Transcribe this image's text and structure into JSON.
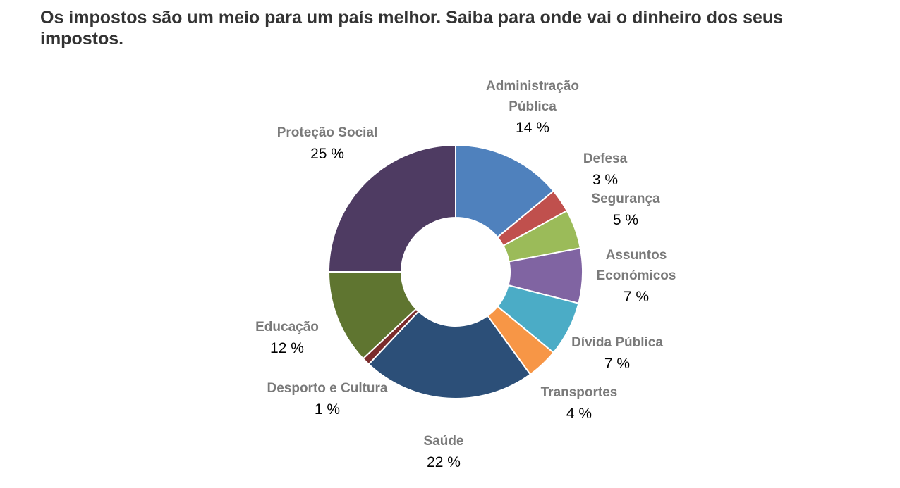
{
  "title": "Os impostos são um meio para um país melhor. Saiba para onde vai o dinheiro dos seus impostos.",
  "chart_data": {
    "type": "pie",
    "donut": true,
    "title": "Os impostos são um meio para um país melhor. Saiba para onde vai o dinheiro dos seus impostos.",
    "start": "top, clockwise",
    "categories": [
      "Administração Pública",
      "Defesa",
      "Segurança",
      "Assuntos Económicos",
      "Dívida Pública",
      "Transportes",
      "Saúde",
      "Desporto e Cultura",
      "Educação",
      "Proteção Social"
    ],
    "title_lines": [
      [
        "Administração",
        "Pública"
      ],
      [
        "Defesa"
      ],
      [
        "Segurança"
      ],
      [
        "Assuntos",
        "Económicos"
      ],
      [
        "Dívida Pública"
      ],
      [
        "Transportes"
      ],
      [
        "Saúde"
      ],
      [
        "Desporto e Cultura"
      ],
      [
        "Educação"
      ],
      [
        "Proteção Social"
      ]
    ],
    "values": [
      14,
      3,
      5,
      7,
      7,
      4,
      22,
      1,
      12,
      25
    ],
    "value_labels": [
      "14 %",
      "3 %",
      "5 %",
      "7 %",
      "7 %",
      "4 %",
      "22 %",
      "1 %",
      "12 %",
      "25 %"
    ],
    "colors": [
      "#4F81BD",
      "#C0504D",
      "#9BBB59",
      "#8064A2",
      "#4BACC6",
      "#F79646",
      "#2C4F78",
      "#7B2C2C",
      "#5F7530",
      "#4E3B62"
    ],
    "legend": "none"
  }
}
